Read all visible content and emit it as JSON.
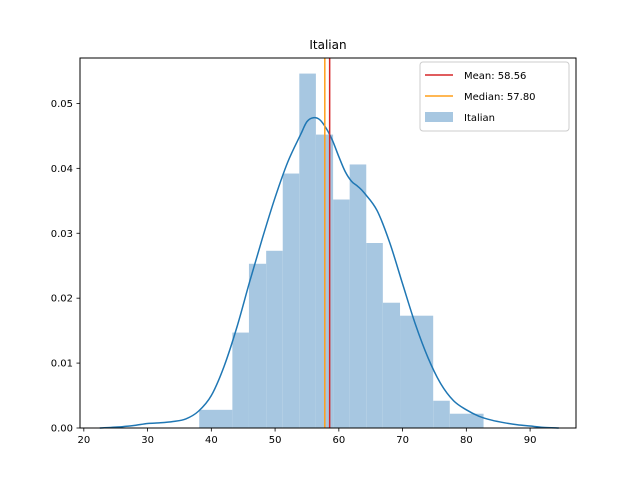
{
  "chart_data": {
    "type": "bar",
    "title": "Italian",
    "xlabel": "",
    "ylabel": "",
    "xlim": [
      19.4,
      97.2
    ],
    "ylim": [
      0,
      0.057
    ],
    "x_ticks": [
      20,
      30,
      40,
      50,
      60,
      70,
      80,
      90
    ],
    "y_ticks": [
      0.0,
      0.01,
      0.02,
      0.03,
      0.04,
      0.05
    ],
    "grid": false,
    "legend_position": "top-right",
    "colors": {
      "hist": "#a7c7e1",
      "kde": "#1f77b4",
      "mean": "#d62728",
      "median": "#ff9f1a"
    },
    "histogram": {
      "name": "Italian",
      "bins": [
        {
          "x0": 38.1,
          "x1": 43.3,
          "value": 0.0028
        },
        {
          "x0": 43.3,
          "x1": 45.9,
          "value": 0.0147
        },
        {
          "x0": 45.9,
          "x1": 48.6,
          "value": 0.0253
        },
        {
          "x0": 48.6,
          "x1": 51.2,
          "value": 0.0273
        },
        {
          "x0": 51.2,
          "x1": 53.8,
          "value": 0.0392
        },
        {
          "x0": 53.8,
          "x1": 56.4,
          "value": 0.0546
        },
        {
          "x0": 56.4,
          "x1": 59.1,
          "value": 0.0452
        },
        {
          "x0": 59.1,
          "x1": 61.7,
          "value": 0.0352
        },
        {
          "x0": 61.7,
          "x1": 64.3,
          "value": 0.0406
        },
        {
          "x0": 64.3,
          "x1": 66.9,
          "value": 0.0285
        },
        {
          "x0": 66.9,
          "x1": 69.6,
          "value": 0.0193
        },
        {
          "x0": 69.6,
          "x1": 74.8,
          "value": 0.0173
        },
        {
          "x0": 74.8,
          "x1": 77.4,
          "value": 0.0042
        },
        {
          "x0": 77.4,
          "x1": 82.7,
          "value": 0.0022
        }
      ]
    },
    "kde": {
      "x": [
        22.5,
        26,
        28,
        30,
        32,
        34,
        36,
        38,
        40,
        42,
        44,
        46,
        48,
        50,
        52,
        54,
        55,
        56,
        57,
        58,
        59,
        60,
        61,
        62,
        63,
        64,
        66,
        68,
        70,
        72,
        74,
        76,
        78,
        80,
        82,
        84,
        86,
        88,
        90,
        92,
        94.5
      ],
      "y": [
        0.0,
        0.0002,
        0.0004,
        0.0007,
        0.0008,
        0.001,
        0.0014,
        0.0026,
        0.005,
        0.0095,
        0.0155,
        0.0225,
        0.0292,
        0.0355,
        0.041,
        0.0452,
        0.0472,
        0.0478,
        0.0475,
        0.0462,
        0.0443,
        0.0418,
        0.0395,
        0.038,
        0.0372,
        0.0362,
        0.0335,
        0.0285,
        0.0222,
        0.016,
        0.0108,
        0.0068,
        0.0042,
        0.0028,
        0.0018,
        0.0012,
        0.0008,
        0.0005,
        0.0003,
        0.0001,
        0.0
      ]
    },
    "mean": {
      "value": 58.56,
      "label": "Mean: 58.56"
    },
    "median": {
      "value": 57.8,
      "label": "Median: 57.80"
    },
    "legend": [
      {
        "label": "Mean: 58.56",
        "kind": "line",
        "color": "#d62728"
      },
      {
        "label": "Median: 57.80",
        "kind": "line",
        "color": "#ff9f1a"
      },
      {
        "label": "Italian",
        "kind": "patch",
        "color": "#a7c7e1"
      }
    ]
  }
}
